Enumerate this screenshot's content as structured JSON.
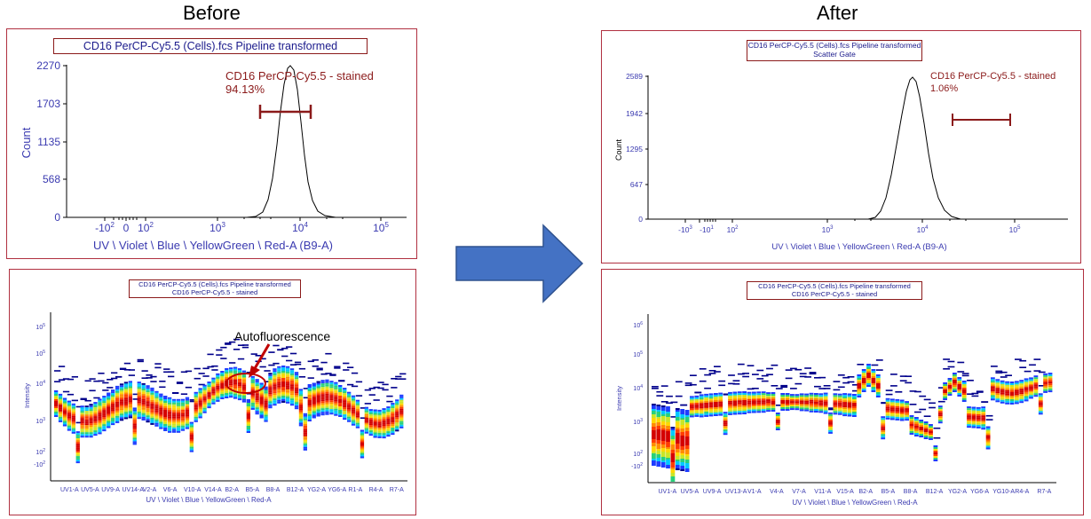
{
  "labels": {
    "before": "Before",
    "after": "After"
  },
  "before_hist": {
    "title": "CD16 PerCP-Cy5.5 (Cells).fcs Pipeline transformed",
    "ylabel": "Count",
    "xlabel": "UV \\ Violet \\ Blue \\ YellowGreen \\ Red-A (B9-A)",
    "yticks": [
      "2270",
      "1703",
      "1135",
      "568",
      "0"
    ],
    "gate_name": "CD16 PerCP-Cy5.5 - stained",
    "gate_pct": "94.13%"
  },
  "after_hist": {
    "title": "CD16 PerCP-Cy5.5 (Cells).fcs Pipeline transformed",
    "subtitle": "Scatter Gate",
    "ylabel": "Count",
    "xlabel": "UV \\ Violet \\ Blue \\ YellowGreen \\ Red-A (B9-A)",
    "yticks": [
      "2589",
      "1942",
      "1295",
      "647",
      "0"
    ],
    "gate_name": "CD16 PerCP-Cy5.5 - stained",
    "gate_pct": "1.06%"
  },
  "before_spectrum": {
    "title": "CD16 PerCP-Cy5.5 (Cells).fcs Pipeline transformed",
    "subtitle": "CD16 PerCP-Cy5.5 - stained",
    "ylabel": "Intensity",
    "xlabel": "UV \\ Violet \\ Blue \\ YellowGreen \\ Red-A",
    "xticks": [
      "UV1-A",
      "UV5-A",
      "UV9-A",
      "UV14-A",
      "V2-A",
      "V6-A",
      "V10-A",
      "V14-A",
      "B2-A",
      "B5-A",
      "B8-A",
      "B12-A",
      "YG2-A",
      "YG6-A",
      "R1-A",
      "R4-A",
      "R7-A"
    ],
    "annotation": "Autofluorescence"
  },
  "after_spectrum": {
    "title": "CD16 PerCP-Cy5.5 (Cells).fcs Pipeline transformed",
    "subtitle": "CD16 PerCP-Cy5.5 - stained",
    "ylabel": "Intensity",
    "xlabel": "UV \\ Violet \\ Blue \\ YellowGreen \\ Red-A",
    "xticks": [
      "UV1-A",
      "UV5-A",
      "UV9-A",
      "UV13-A",
      "V1-A",
      "V4-A",
      "V7-A",
      "V11-A",
      "V15-A",
      "B2-A",
      "B5-A",
      "B8-A",
      "B12-A",
      "YG2-A",
      "YG6-A",
      "YG10-A",
      "R4-A",
      "R7-A"
    ]
  },
  "colors": {
    "border": "#b03040",
    "gate": "#8b1a1a",
    "axis_text": "#3a3ab0",
    "arrow": "#4472c4"
  }
}
